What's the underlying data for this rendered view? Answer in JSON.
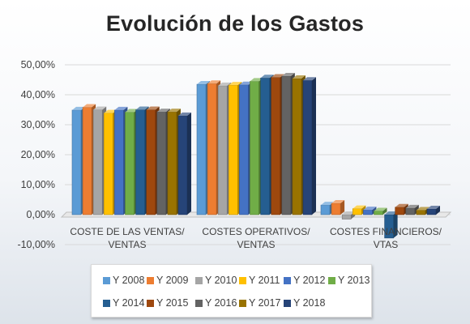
{
  "chart_data": {
    "type": "bar",
    "title": "Evolución de los Gastos",
    "xlabel": "",
    "ylabel": "",
    "ylim": [
      -10,
      50
    ],
    "y_ticks": [
      "-10,00%",
      "0,00%",
      "10,00%",
      "20,00%",
      "30,00%",
      "40,00%",
      "50,00%"
    ],
    "y_tick_values": [
      -10,
      0,
      10,
      20,
      30,
      40,
      50
    ],
    "grid": true,
    "legend_position": "bottom",
    "categories": [
      [
        "COSTE DE LAS VENTAS/",
        "VENTAS"
      ],
      [
        "COSTES OPERATIVOS/",
        "VENTAS"
      ],
      [
        "COSTES FINANCIEROS/",
        "VTAS"
      ]
    ],
    "series": [
      {
        "name": "Y 2008",
        "color": "#5b9bd5",
        "values": [
          34.9,
          43.5,
          3.2
        ]
      },
      {
        "name": "Y 2009",
        "color": "#ed7d31",
        "values": [
          35.8,
          43.7,
          3.8
        ]
      },
      {
        "name": "Y 2010",
        "color": "#a5a5a5",
        "values": [
          35.0,
          43.0,
          -1.5
        ]
      },
      {
        "name": "Y 2011",
        "color": "#ffc000",
        "values": [
          33.9,
          43.2,
          2.0
        ]
      },
      {
        "name": "Y 2012",
        "color": "#4472c4",
        "values": [
          34.9,
          43.3,
          1.6
        ]
      },
      {
        "name": "Y 2013",
        "color": "#70ad47",
        "values": [
          34.2,
          44.5,
          1.2
        ]
      },
      {
        "name": "Y 2014",
        "color": "#255e91",
        "values": [
          35.0,
          45.6,
          -7.8
        ]
      },
      {
        "name": "Y 2015",
        "color": "#9e480e",
        "values": [
          35.0,
          45.8,
          2.5
        ]
      },
      {
        "name": "Y 2016",
        "color": "#636363",
        "values": [
          34.3,
          46.2,
          2.2
        ]
      },
      {
        "name": "Y 2017",
        "color": "#997300",
        "values": [
          34.3,
          45.4,
          1.5
        ]
      },
      {
        "name": "Y 2018",
        "color": "#264478",
        "values": [
          33.0,
          44.8,
          1.9
        ]
      }
    ]
  }
}
